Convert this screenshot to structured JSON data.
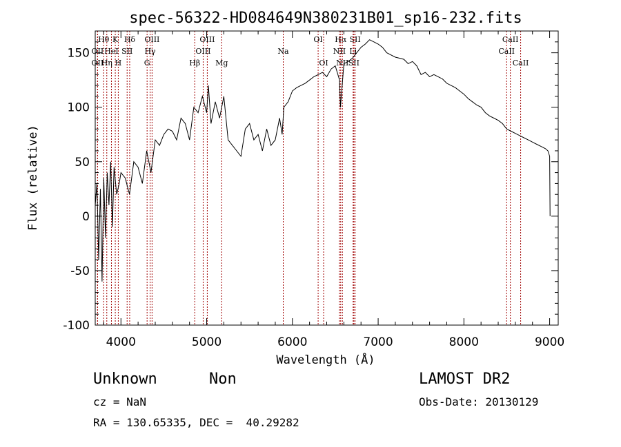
{
  "chart_data": {
    "type": "line",
    "title": "spec-56322-HD084649N380231B01_sp16-232.fits",
    "xlabel": "Wavelength (Å)",
    "ylabel": "Flux (relative)",
    "xlim": [
      3700,
      9100
    ],
    "ylim": [
      -100,
      170
    ],
    "xticks": [
      4000,
      5000,
      6000,
      7000,
      8000,
      9000
    ],
    "yticks": [
      -100,
      -50,
      0,
      50,
      100,
      150
    ],
    "line_color": "#000000",
    "marker_color": "#a00000",
    "grid": false,
    "series": [
      {
        "x": [
          3700,
          3720,
          3740,
          3760,
          3780,
          3800,
          3820,
          3840,
          3860,
          3880,
          3900,
          3920,
          3950,
          3980,
          4000,
          4050,
          4100,
          4150,
          4200,
          4250,
          4300,
          4350,
          4400,
          4450,
          4500,
          4550,
          4600,
          4650,
          4700,
          4750,
          4800,
          4850,
          4900,
          4950,
          5000,
          5020,
          5050,
          5100,
          5150,
          5200,
          5250,
          5300,
          5350,
          5400,
          5450,
          5500,
          5550,
          5600,
          5650,
          5700,
          5750,
          5800,
          5850,
          5880,
          5900,
          5950,
          6000,
          6050,
          6100,
          6150,
          6200,
          6250,
          6300,
          6350,
          6400,
          6450,
          6500,
          6550,
          6560,
          6600,
          6650,
          6700,
          6750,
          6800,
          6850,
          6900,
          6950,
          7000,
          7050,
          7100,
          7150,
          7200,
          7250,
          7300,
          7350,
          7400,
          7450,
          7500,
          7550,
          7600,
          7650,
          7700,
          7750,
          7800,
          7850,
          7900,
          7950,
          8000,
          8050,
          8100,
          8150,
          8200,
          8250,
          8300,
          8350,
          8400,
          8450,
          8500,
          8550,
          8600,
          8650,
          8700,
          8750,
          8800,
          8850,
          8900,
          8950,
          8980,
          9000,
          9005
        ],
        "y": [
          10,
          30,
          -40,
          25,
          -60,
          35,
          -20,
          40,
          10,
          50,
          -10,
          45,
          20,
          30,
          40,
          35,
          20,
          50,
          45,
          30,
          60,
          40,
          70,
          65,
          75,
          80,
          78,
          70,
          90,
          85,
          70,
          100,
          95,
          110,
          95,
          120,
          85,
          105,
          90,
          110,
          70,
          65,
          60,
          55,
          80,
          85,
          70,
          75,
          60,
          80,
          65,
          70,
          90,
          75,
          100,
          105,
          115,
          118,
          120,
          122,
          125,
          128,
          130,
          132,
          128,
          135,
          138,
          125,
          100,
          140,
          142,
          145,
          150,
          155,
          158,
          162,
          160,
          158,
          155,
          150,
          148,
          146,
          145,
          144,
          140,
          142,
          138,
          130,
          132,
          128,
          130,
          128,
          126,
          122,
          120,
          118,
          115,
          112,
          108,
          105,
          102,
          100,
          95,
          92,
          90,
          88,
          85,
          80,
          78,
          76,
          74,
          72,
          70,
          68,
          66,
          64,
          62,
          60,
          55,
          0
        ]
      }
    ],
    "lines": [
      {
        "name": "Hθ",
        "wl": 3798,
        "tier": 0
      },
      {
        "name": "K",
        "wl": 3934,
        "tier": 0
      },
      {
        "name": "Hδ",
        "wl": 4102,
        "tier": 0
      },
      {
        "name": "OIII",
        "wl": 4363,
        "tier": 0
      },
      {
        "name": "OIII",
        "wl": 5007,
        "tier": 0
      },
      {
        "name": "OI",
        "wl": 6300,
        "tier": 0
      },
      {
        "name": "Hα",
        "wl": 6563,
        "tier": 0
      },
      {
        "name": "SII",
        "wl": 6731,
        "tier": 0
      },
      {
        "name": "CaII",
        "wl": 8542,
        "tier": 0
      },
      {
        "name": "OII",
        "wl": 3727,
        "tier": 1
      },
      {
        "name": "HeI",
        "wl": 3889,
        "tier": 1
      },
      {
        "name": "SII",
        "wl": 4072,
        "tier": 1
      },
      {
        "name": "Hγ",
        "wl": 4340,
        "tier": 1
      },
      {
        "name": "OIII",
        "wl": 4959,
        "tier": 1
      },
      {
        "name": "Na",
        "wl": 5893,
        "tier": 1
      },
      {
        "name": "NII",
        "wl": 6548,
        "tier": 1
      },
      {
        "name": "Li",
        "wl": 6708,
        "tier": 1
      },
      {
        "name": "CaII",
        "wl": 8498,
        "tier": 1
      },
      {
        "name": "OII",
        "wl": 3727,
        "tier": 2
      },
      {
        "name": "Hη",
        "wl": 3835,
        "tier": 2
      },
      {
        "name": "H",
        "wl": 3969,
        "tier": 2
      },
      {
        "name": "G",
        "wl": 4305,
        "tier": 2
      },
      {
        "name": "Hβ",
        "wl": 4861,
        "tier": 2
      },
      {
        "name": "Mg",
        "wl": 5175,
        "tier": 2
      },
      {
        "name": "OI",
        "wl": 6364,
        "tier": 2
      },
      {
        "name": "NII",
        "wl": 6583,
        "tier": 2
      },
      {
        "name": "SII",
        "wl": 6717,
        "tier": 2
      },
      {
        "name": "CaII",
        "wl": 8662,
        "tier": 2
      }
    ]
  },
  "info": {
    "object_class": "Unknown",
    "subclass": "Non",
    "survey": "LAMOST DR2",
    "redshift": "cz = NaN",
    "obs_date": "Obs-Date: 20130129",
    "coords": "RA = 130.65335, DEC =  40.29282"
  }
}
